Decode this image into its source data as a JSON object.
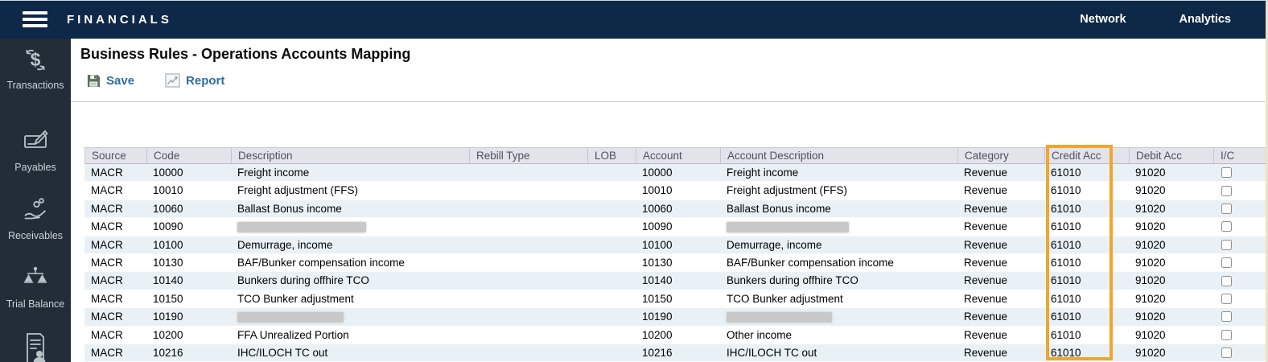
{
  "colors": {
    "topbar_bg": "#0e2847",
    "sidebar_bg": "#232d37",
    "accent": "#f0a62b",
    "link": "#2e6d9e",
    "row_alt": "#e9f1f6",
    "header_bg": "#e3e3ec"
  },
  "topbar": {
    "app_title": "FINANCIALS",
    "nav": [
      {
        "label": "Network"
      },
      {
        "label": "Analytics"
      }
    ]
  },
  "sidebar": {
    "items": [
      {
        "icon": "transactions-icon",
        "label": "Transactions"
      },
      {
        "icon": "payables-icon",
        "label": "Payables"
      },
      {
        "icon": "receivables-icon",
        "label": "Receivables"
      },
      {
        "icon": "trial-balance-icon",
        "label": "Trial Balance"
      },
      {
        "icon": "document-user-icon",
        "label": ""
      }
    ]
  },
  "main": {
    "page_title": "Business Rules - Operations Accounts Mapping",
    "toolbar": {
      "save_label": "Save",
      "report_label": "Report"
    },
    "highlight": {
      "column": "Credit Acc",
      "color": "#f0a62b"
    },
    "table": {
      "columns": [
        "Source",
        "Code",
        "Description",
        "Rebill Type",
        "LOB",
        "Account",
        "Account Description",
        "Category",
        "Credit Acc",
        "Debit Acc",
        "I/C"
      ],
      "rows": [
        {
          "source": "MACR",
          "code": "10000",
          "description": "Freight income",
          "rebill_type": "",
          "lob": "",
          "account": "10000",
          "account_description": "Freight income",
          "category": "Revenue",
          "credit_acc": "61010",
          "debit_acc": "91020",
          "ic_checked": false
        },
        {
          "source": "MACR",
          "code": "10010",
          "description": "Freight adjustment (FFS)",
          "rebill_type": "",
          "lob": "",
          "account": "10010",
          "account_description": "Freight adjustment (FFS)",
          "category": "Revenue",
          "credit_acc": "61010",
          "debit_acc": "91020",
          "ic_checked": false
        },
        {
          "source": "MACR",
          "code": "10060",
          "description": "Ballast Bonus income",
          "rebill_type": "",
          "lob": "",
          "account": "10060",
          "account_description": "Ballast Bonus income",
          "category": "Revenue",
          "credit_acc": "61010",
          "debit_acc": "91020",
          "ic_checked": false
        },
        {
          "source": "MACR",
          "code": "10090",
          "description": "",
          "description_redacted": true,
          "description_redacted_width": 160,
          "rebill_type": "",
          "lob": "",
          "account": "10090",
          "account_description": "",
          "account_description_redacted": true,
          "account_description_redacted_width": 152,
          "category": "Revenue",
          "credit_acc": "61010",
          "debit_acc": "91020",
          "ic_checked": false
        },
        {
          "source": "MACR",
          "code": "10100",
          "description": "Demurrage, income",
          "rebill_type": "",
          "lob": "",
          "account": "10100",
          "account_description": "Demurrage, income",
          "category": "Revenue",
          "credit_acc": "61010",
          "debit_acc": "91020",
          "ic_checked": false
        },
        {
          "source": "MACR",
          "code": "10130",
          "description": "BAF/Bunker compensation income",
          "rebill_type": "",
          "lob": "",
          "account": "10130",
          "account_description": "BAF/Bunker compensation income",
          "category": "Revenue",
          "credit_acc": "61010",
          "debit_acc": "91020",
          "ic_checked": false
        },
        {
          "source": "MACR",
          "code": "10140",
          "description": "Bunkers during offhire TCO",
          "rebill_type": "",
          "lob": "",
          "account": "10140",
          "account_description": "Bunkers during offhire TCO",
          "category": "Revenue",
          "credit_acc": "61010",
          "debit_acc": "91020",
          "ic_checked": false
        },
        {
          "source": "MACR",
          "code": "10150",
          "description": "TCO Bunker adjustment",
          "rebill_type": "",
          "lob": "",
          "account": "10150",
          "account_description": "TCO Bunker adjustment",
          "category": "Revenue",
          "credit_acc": "61010",
          "debit_acc": "91020",
          "ic_checked": false
        },
        {
          "source": "MACR",
          "code": "10190",
          "description": "",
          "description_redacted": true,
          "description_redacted_width": 132,
          "rebill_type": "",
          "lob": "",
          "account": "10190",
          "account_description": "",
          "account_description_redacted": true,
          "account_description_redacted_width": 131,
          "category": "Revenue",
          "credit_acc": "61010",
          "debit_acc": "91020",
          "ic_checked": false
        },
        {
          "source": "MACR",
          "code": "10200",
          "description": "FFA Unrealized Portion",
          "rebill_type": "",
          "lob": "",
          "account": "10200",
          "account_description": "Other income",
          "category": "Revenue",
          "credit_acc": "61010",
          "debit_acc": "91020",
          "ic_checked": false
        },
        {
          "source": "MACR",
          "code": "10216",
          "description": "IHC/ILOCH TC out",
          "rebill_type": "",
          "lob": "",
          "account": "10216",
          "account_description": "IHC/ILOCH TC out",
          "category": "Revenue",
          "credit_acc": "61010",
          "debit_acc": "91020",
          "ic_checked": false
        }
      ]
    }
  }
}
